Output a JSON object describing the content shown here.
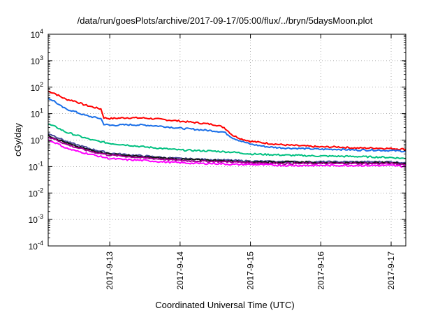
{
  "chart_data": {
    "type": "line",
    "title": "/data/run/goesPlots/archive/2017-09-17/05:00/flux/../bryn/5daysMoon.plot",
    "xlabel": "Coordinated Universal Time (UTC)",
    "ylabel": "cGy/day",
    "yscale": "log",
    "ylim": [
      0.0001,
      10000
    ],
    "y_ticks": [
      {
        "base": "10",
        "exp": "-4"
      },
      {
        "base": "10",
        "exp": "-3"
      },
      {
        "base": "10",
        "exp": "-2"
      },
      {
        "base": "10",
        "exp": "-1"
      },
      {
        "base": "10",
        "exp": "0"
      },
      {
        "base": "10",
        "exp": "1"
      },
      {
        "base": "10",
        "exp": "2"
      },
      {
        "base": "10",
        "exp": "3"
      },
      {
        "base": "10",
        "exp": "4"
      }
    ],
    "xlim": [
      "2017-09-12 03:00",
      "2017-09-17 05:00"
    ],
    "x_ticks": [
      {
        "label": "2017-9-13",
        "date": "2017-09-13 00:00"
      },
      {
        "label": "2017-9-14",
        "date": "2017-09-14 00:00"
      },
      {
        "label": "2017-9-15",
        "date": "2017-09-15 00:00"
      },
      {
        "label": "2017-9-16",
        "date": "2017-09-16 00:00"
      },
      {
        "label": "2017-9-17",
        "date": "2017-09-17 00:00"
      }
    ],
    "grid": true,
    "series": [
      {
        "color": "#ff0000",
        "x": [
          "2017-09-12 03:00",
          "2017-09-12 05:00",
          "2017-09-12 07:00",
          "2017-09-12 09:00",
          "2017-09-12 12:00",
          "2017-09-12 15:00",
          "2017-09-12 18:00",
          "2017-09-12 21:00",
          "2017-09-12 22:00",
          "2017-09-13 00:00",
          "2017-09-13 06:00",
          "2017-09-13 12:00",
          "2017-09-13 18:00",
          "2017-09-14 00:00",
          "2017-09-14 06:00",
          "2017-09-14 12:00",
          "2017-09-14 15:00",
          "2017-09-14 18:00",
          "2017-09-14 21:00",
          "2017-09-15 00:00",
          "2017-09-15 06:00",
          "2017-09-15 12:00",
          "2017-09-15 18:00",
          "2017-09-16 00:00",
          "2017-09-16 06:00",
          "2017-09-16 12:00",
          "2017-09-16 18:00",
          "2017-09-17 00:00",
          "2017-09-17 05:00"
        ],
        "y": [
          70,
          60,
          45,
          35,
          30,
          22,
          18,
          15,
          7,
          6.5,
          7,
          6.8,
          6,
          5.2,
          4.5,
          3.8,
          3,
          1.5,
          1.1,
          0.9,
          0.75,
          0.65,
          0.6,
          0.55,
          0.55,
          0.5,
          0.5,
          0.48,
          0.45
        ]
      },
      {
        "color": "#1a6fe8",
        "x": [
          "2017-09-12 03:00",
          "2017-09-12 05:00",
          "2017-09-12 07:00",
          "2017-09-12 09:00",
          "2017-09-12 12:00",
          "2017-09-12 15:00",
          "2017-09-12 18:00",
          "2017-09-12 21:00",
          "2017-09-12 22:00",
          "2017-09-13 00:00",
          "2017-09-13 06:00",
          "2017-09-13 12:00",
          "2017-09-13 18:00",
          "2017-09-14 00:00",
          "2017-09-14 06:00",
          "2017-09-14 12:00",
          "2017-09-14 15:00",
          "2017-09-14 18:00",
          "2017-09-14 21:00",
          "2017-09-15 00:00",
          "2017-09-15 06:00",
          "2017-09-15 12:00",
          "2017-09-15 18:00",
          "2017-09-16 00:00",
          "2017-09-16 06:00",
          "2017-09-16 12:00",
          "2017-09-16 18:00",
          "2017-09-17 00:00",
          "2017-09-17 05:00"
        ],
        "y": [
          38,
          30,
          20,
          15,
          12,
          9,
          7.5,
          6.5,
          4,
          3.6,
          3.8,
          3.7,
          3.3,
          2.8,
          2.5,
          2.2,
          2,
          1.2,
          0.9,
          0.7,
          0.55,
          0.5,
          0.48,
          0.45,
          0.45,
          0.42,
          0.42,
          0.4,
          0.38
        ]
      },
      {
        "color": "#00c080",
        "x": [
          "2017-09-12 03:00",
          "2017-09-12 06:00",
          "2017-09-12 09:00",
          "2017-09-12 12:00",
          "2017-09-12 18:00",
          "2017-09-13 00:00",
          "2017-09-13 06:00",
          "2017-09-13 12:00",
          "2017-09-13 18:00",
          "2017-09-14 00:00",
          "2017-09-14 06:00",
          "2017-09-14 12:00",
          "2017-09-14 18:00",
          "2017-09-15 00:00",
          "2017-09-15 12:00",
          "2017-09-16 00:00",
          "2017-09-16 12:00",
          "2017-09-17 00:00",
          "2017-09-17 05:00"
        ],
        "y": [
          4,
          3,
          2,
          1.6,
          1,
          0.75,
          0.65,
          0.55,
          0.48,
          0.42,
          0.4,
          0.38,
          0.35,
          0.3,
          0.27,
          0.25,
          0.24,
          0.22,
          0.2
        ]
      },
      {
        "color": "#4a4a9a",
        "x": [
          "2017-09-12 03:00",
          "2017-09-12 06:00",
          "2017-09-12 09:00",
          "2017-09-12 12:00",
          "2017-09-12 18:00",
          "2017-09-13 00:00",
          "2017-09-13 06:00",
          "2017-09-13 12:00",
          "2017-09-13 18:00",
          "2017-09-14 00:00",
          "2017-09-14 06:00",
          "2017-09-14 12:00",
          "2017-09-14 18:00",
          "2017-09-15 00:00",
          "2017-09-15 12:00",
          "2017-09-16 00:00",
          "2017-09-16 12:00",
          "2017-09-17 00:00",
          "2017-09-17 05:00"
        ],
        "y": [
          1.8,
          1.3,
          0.9,
          0.7,
          0.45,
          0.32,
          0.28,
          0.25,
          0.22,
          0.2,
          0.19,
          0.18,
          0.17,
          0.16,
          0.15,
          0.15,
          0.15,
          0.15,
          0.14
        ]
      },
      {
        "color": "#111111",
        "x": [
          "2017-09-12 03:00",
          "2017-09-12 06:00",
          "2017-09-12 09:00",
          "2017-09-12 12:00",
          "2017-09-12 18:00",
          "2017-09-13 00:00",
          "2017-09-13 06:00",
          "2017-09-13 12:00",
          "2017-09-13 18:00",
          "2017-09-14 00:00",
          "2017-09-14 06:00",
          "2017-09-14 12:00",
          "2017-09-14 18:00",
          "2017-09-15 00:00",
          "2017-09-15 12:00",
          "2017-09-16 00:00",
          "2017-09-16 12:00",
          "2017-09-17 00:00",
          "2017-09-17 05:00"
        ],
        "y": [
          1.5,
          1.1,
          0.8,
          0.6,
          0.4,
          0.3,
          0.26,
          0.23,
          0.21,
          0.19,
          0.18,
          0.17,
          0.16,
          0.15,
          0.15,
          0.14,
          0.14,
          0.14,
          0.13
        ]
      },
      {
        "color": "#a00090",
        "x": [
          "2017-09-12 03:00",
          "2017-09-12 06:00",
          "2017-09-12 09:00",
          "2017-09-12 12:00",
          "2017-09-12 18:00",
          "2017-09-13 00:00",
          "2017-09-13 06:00",
          "2017-09-13 12:00",
          "2017-09-13 18:00",
          "2017-09-14 00:00",
          "2017-09-14 06:00",
          "2017-09-14 12:00",
          "2017-09-14 18:00",
          "2017-09-15 00:00",
          "2017-09-15 12:00",
          "2017-09-16 00:00",
          "2017-09-16 12:00",
          "2017-09-17 00:00",
          "2017-09-17 05:00"
        ],
        "y": [
          1.3,
          1.0,
          0.7,
          0.55,
          0.36,
          0.27,
          0.24,
          0.21,
          0.19,
          0.17,
          0.16,
          0.155,
          0.15,
          0.14,
          0.13,
          0.13,
          0.13,
          0.13,
          0.12
        ]
      },
      {
        "color": "#ff00ff",
        "x": [
          "2017-09-12 03:00",
          "2017-09-12 06:00",
          "2017-09-12 09:00",
          "2017-09-12 12:00",
          "2017-09-12 18:00",
          "2017-09-13 00:00",
          "2017-09-13 06:00",
          "2017-09-13 12:00",
          "2017-09-13 18:00",
          "2017-09-14 00:00",
          "2017-09-14 06:00",
          "2017-09-14 12:00",
          "2017-09-14 18:00",
          "2017-09-15 00:00",
          "2017-09-15 12:00",
          "2017-09-16 00:00",
          "2017-09-16 12:00",
          "2017-09-17 00:00",
          "2017-09-17 05:00"
        ],
        "y": [
          1.0,
          0.75,
          0.5,
          0.4,
          0.28,
          0.2,
          0.18,
          0.17,
          0.15,
          0.14,
          0.13,
          0.13,
          0.12,
          0.12,
          0.11,
          0.11,
          0.11,
          0.11,
          0.1
        ]
      }
    ]
  }
}
